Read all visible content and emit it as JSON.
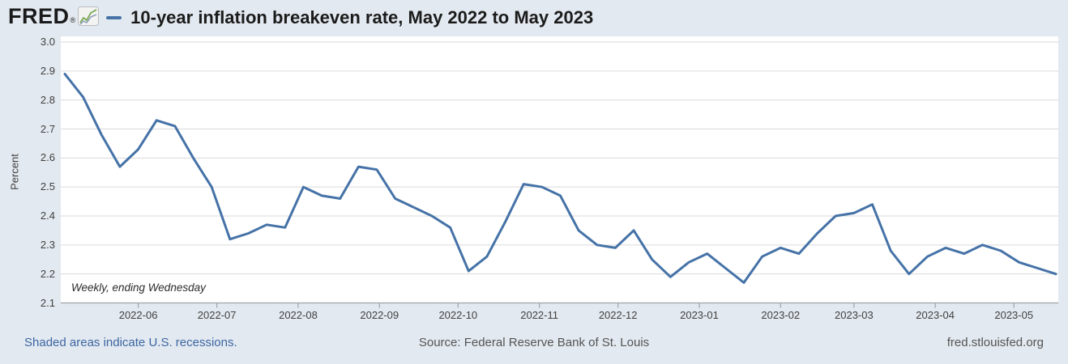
{
  "header": {
    "logo_text": "FRED",
    "logo_registered": "®",
    "title": "10-year inflation breakeven rate, May 2022 to May 2023"
  },
  "chart_data": {
    "type": "line",
    "title": "10-year inflation breakeven rate, May 2022 to May 2023",
    "xlabel": "",
    "ylabel": "Percent",
    "annotation": "Weekly, ending Wednesday",
    "ylim": [
      2.1,
      3.0
    ],
    "ytick_labels": [
      "3.0",
      "2.9",
      "2.8",
      "2.7",
      "2.6",
      "2.5",
      "2.4",
      "2.3",
      "2.2",
      "2.1"
    ],
    "yticks": [
      3.0,
      2.9,
      2.8,
      2.7,
      2.6,
      2.5,
      2.4,
      2.3,
      2.2,
      2.1
    ],
    "xtick_labels": [
      "2022-06",
      "2022-07",
      "2022-08",
      "2022-09",
      "2022-10",
      "2022-11",
      "2022-12",
      "2023-01",
      "2023-02",
      "2023-03",
      "2023-04",
      "2023-05"
    ],
    "xtick_dates": [
      "2022-06-01",
      "2022-07-01",
      "2022-08-01",
      "2022-09-01",
      "2022-10-01",
      "2022-11-01",
      "2022-12-01",
      "2023-01-01",
      "2023-02-01",
      "2023-03-01",
      "2023-04-01",
      "2023-05-01"
    ],
    "grid": true,
    "legend_position": "top-dash-before-title",
    "series": [
      {
        "name": "10-year inflation breakeven rate",
        "color": "#4572a7",
        "x": [
          "2022-05-04",
          "2022-05-11",
          "2022-05-18",
          "2022-05-25",
          "2022-06-01",
          "2022-06-08",
          "2022-06-15",
          "2022-06-22",
          "2022-06-29",
          "2022-07-06",
          "2022-07-13",
          "2022-07-20",
          "2022-07-27",
          "2022-08-03",
          "2022-08-10",
          "2022-08-17",
          "2022-08-24",
          "2022-08-31",
          "2022-09-07",
          "2022-09-14",
          "2022-09-21",
          "2022-09-28",
          "2022-10-05",
          "2022-10-12",
          "2022-10-19",
          "2022-10-26",
          "2022-11-02",
          "2022-11-09",
          "2022-11-16",
          "2022-11-23",
          "2022-11-30",
          "2022-12-07",
          "2022-12-14",
          "2022-12-21",
          "2022-12-28",
          "2023-01-04",
          "2023-01-11",
          "2023-01-18",
          "2023-01-25",
          "2023-02-01",
          "2023-02-08",
          "2023-02-15",
          "2023-02-22",
          "2023-03-01",
          "2023-03-08",
          "2023-03-15",
          "2023-03-22",
          "2023-03-29",
          "2023-04-05",
          "2023-04-12",
          "2023-04-19",
          "2023-04-26",
          "2023-05-03",
          "2023-05-10",
          "2023-05-17"
        ],
        "values": [
          2.89,
          2.81,
          2.68,
          2.57,
          2.63,
          2.73,
          2.71,
          2.6,
          2.5,
          2.32,
          2.34,
          2.37,
          2.36,
          2.5,
          2.47,
          2.46,
          2.57,
          2.56,
          2.46,
          2.43,
          2.4,
          2.36,
          2.21,
          2.26,
          2.38,
          2.51,
          2.5,
          2.47,
          2.35,
          2.3,
          2.29,
          2.35,
          2.25,
          2.19,
          2.24,
          2.27,
          2.22,
          2.17,
          2.26,
          2.29,
          2.27,
          2.34,
          2.4,
          2.41,
          2.44,
          2.28,
          2.2,
          2.26,
          2.29,
          2.27,
          2.3,
          2.28,
          2.24,
          2.22,
          2.2
        ]
      }
    ]
  },
  "footer": {
    "left_link": "Shaded areas indicate U.S. recessions.",
    "source": "Source: Federal Reserve Bank of St. Louis",
    "site": "fred.stlouisfed.org"
  },
  "colors": {
    "background": "#e3e9f0",
    "plot_background": "#ffffff",
    "gridline": "#dadada",
    "axis": "#a0a4a8",
    "series_line": "#4572a7",
    "tick_text": "#404040",
    "title_text": "#1b1b1b",
    "footer_text": "#545454",
    "link_blue": "#3b66a2",
    "logo_green": "#7aa854",
    "logo_blue": "#8096b4"
  }
}
